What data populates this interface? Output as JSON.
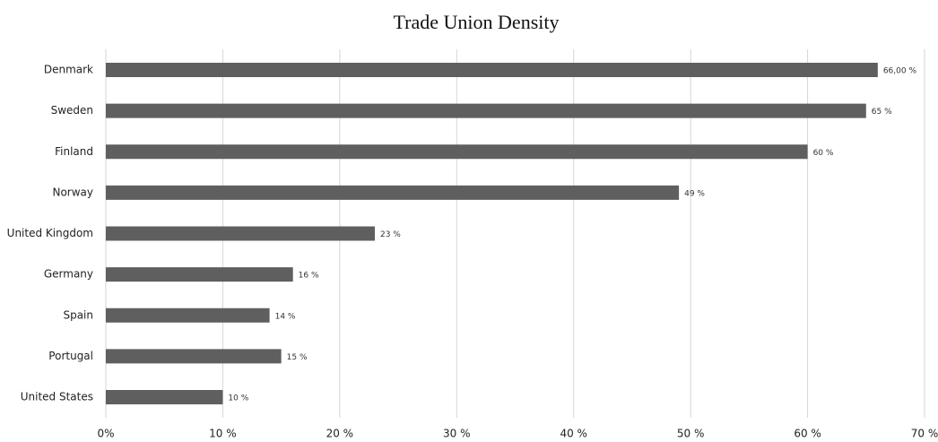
{
  "chart_data": {
    "type": "bar",
    "orientation": "horizontal",
    "title": "Trade Union Density",
    "categories": [
      "Denmark",
      "Sweden",
      "Finland",
      "Norway",
      "United Kingdom",
      "Germany",
      "Spain",
      "Portugal",
      "United States"
    ],
    "values": [
      66,
      65,
      60,
      49,
      23,
      16,
      14,
      15,
      10
    ],
    "value_labels": [
      "66,00 %",
      "65 %",
      "60 %",
      "49 %",
      "23 %",
      "16 %",
      "14 %",
      "15 %",
      "10 %"
    ],
    "color": "#5f5f5f",
    "xlim": [
      0,
      70
    ],
    "xticks": [
      {
        "value": 0,
        "label": "0%"
      },
      {
        "value": 10,
        "label": "10 %"
      },
      {
        "value": 20,
        "label": "20 %"
      },
      {
        "value": 30,
        "label": "30 %"
      },
      {
        "value": 40,
        "label": "40 %"
      },
      {
        "value": 50,
        "label": "50 %"
      },
      {
        "value": 60,
        "label": "60 %"
      },
      {
        "value": 70,
        "label": "70 %"
      }
    ],
    "grid": true
  }
}
